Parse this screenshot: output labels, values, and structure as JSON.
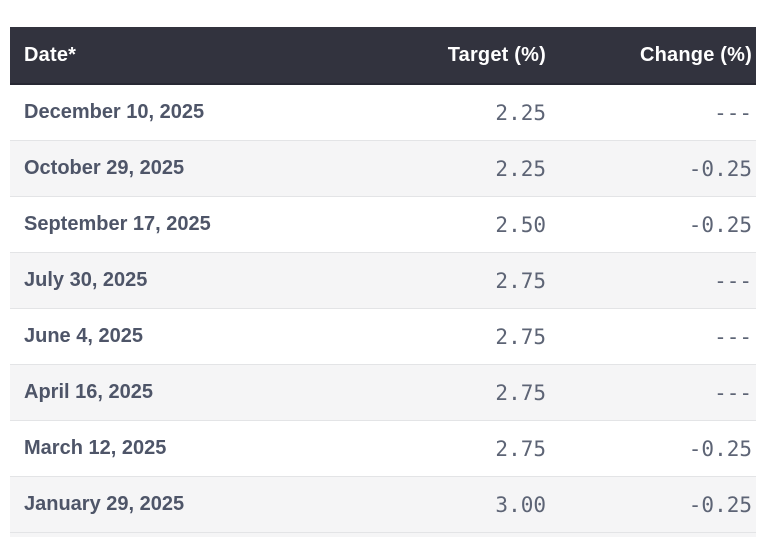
{
  "table": {
    "header": {
      "date_label": "Date*",
      "target_label": "Target (%)",
      "change_label": "Change (%)"
    },
    "rows": [
      {
        "date": "December 10, 2025",
        "target": "2.25",
        "change": "---"
      },
      {
        "date": "October 29, 2025",
        "target": "2.25",
        "change": "-0.25"
      },
      {
        "date": "September 17, 2025",
        "target": "2.50",
        "change": "-0.25"
      },
      {
        "date": "July 30, 2025",
        "target": "2.75",
        "change": "---"
      },
      {
        "date": "June 4, 2025",
        "target": "2.75",
        "change": "---"
      },
      {
        "date": "April 16, 2025",
        "target": "2.75",
        "change": "---"
      },
      {
        "date": "March 12, 2025",
        "target": "2.75",
        "change": "-0.25"
      },
      {
        "date": "January 29, 2025",
        "target": "3.00",
        "change": "-0.25"
      }
    ],
    "colors": {
      "header_background": "#32333e",
      "header_border": "#272833",
      "header_text": "#ffffff",
      "date_text": "#4e5568",
      "number_text": "#5d6475",
      "alt_row_background": "#f5f5f6",
      "row_border": "#e3e4e6",
      "page_background": "#ffffff"
    }
  }
}
